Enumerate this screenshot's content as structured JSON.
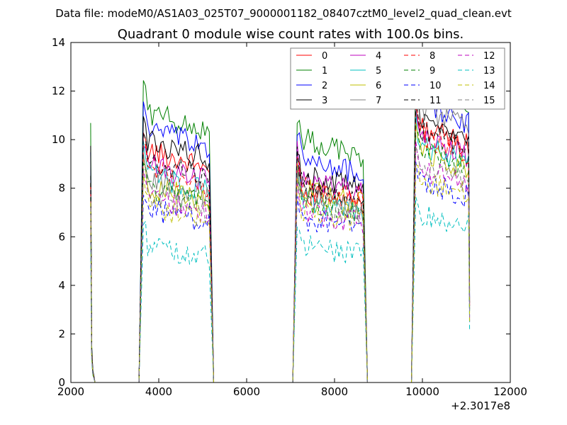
{
  "chart_data": {
    "type": "line",
    "suptitle": "Data file: modeM0/AS1A03_025T07_9000001182_08407cztM0_level2_quad_clean.evt",
    "title": "Quadrant 0 module wise count rates with 100.0s bins.",
    "xlabel": "",
    "ylabel": "",
    "x_offset_label": "+2.3017e8",
    "xlim": [
      2000,
      12000
    ],
    "ylim": [
      0,
      14
    ],
    "xticks": [
      2000,
      4000,
      6000,
      8000,
      10000,
      12000
    ],
    "yticks": [
      0,
      2,
      4,
      6,
      8,
      10,
      12,
      14
    ],
    "grid": false,
    "legend_position": "top-right",
    "legend_columns": 4,
    "segments": [
      {
        "start": 2450,
        "end": 2550
      },
      {
        "start": 3650,
        "end": 5150
      },
      {
        "start": 7150,
        "end": 8650
      },
      {
        "start": 9850,
        "end": 11050
      }
    ],
    "series": [
      {
        "name": "0",
        "color": "#ff0000",
        "dash": "solid",
        "seg_levels": [
          8.6,
          9.6,
          7.9,
          10.6
        ]
      },
      {
        "name": "1",
        "color": "#008000",
        "dash": "solid",
        "seg_levels": [
          10.4,
          11.2,
          10.1,
          12.6
        ]
      },
      {
        "name": "2",
        "color": "#0000ff",
        "dash": "solid",
        "seg_levels": [
          9.4,
          10.5,
          9.3,
          11.6
        ]
      },
      {
        "name": "3",
        "color": "#000000",
        "dash": "solid",
        "seg_levels": [
          9.8,
          10.0,
          8.6,
          10.9
        ]
      },
      {
        "name": "4",
        "color": "#bf00bf",
        "dash": "solid",
        "seg_levels": [
          8.2,
          9.0,
          8.5,
          10.1
        ]
      },
      {
        "name": "5",
        "color": "#00bfbf",
        "dash": "solid",
        "seg_levels": [
          7.8,
          8.6,
          7.6,
          9.8
        ]
      },
      {
        "name": "6",
        "color": "#bfbf00",
        "dash": "solid",
        "seg_levels": [
          7.9,
          8.1,
          8.0,
          9.5
        ]
      },
      {
        "name": "7",
        "color": "#808080",
        "dash": "solid",
        "seg_levels": [
          8.0,
          8.4,
          7.8,
          11.4
        ]
      },
      {
        "name": "8",
        "color": "#ff0000",
        "dash": "dashed",
        "seg_levels": [
          8.1,
          8.8,
          8.2,
          10.2
        ]
      },
      {
        "name": "9",
        "color": "#008000",
        "dash": "dashed",
        "seg_levels": [
          7.6,
          8.0,
          7.4,
          9.6
        ]
      },
      {
        "name": "10",
        "color": "#0000ff",
        "dash": "dashed",
        "seg_levels": [
          6.6,
          7.2,
          6.8,
          8.3
        ]
      },
      {
        "name": "11",
        "color": "#000000",
        "dash": "dashed",
        "seg_levels": [
          8.4,
          9.2,
          8.3,
          10.5
        ]
      },
      {
        "name": "12",
        "color": "#bf00bf",
        "dash": "dashed",
        "seg_levels": [
          7.3,
          7.6,
          7.1,
          8.8
        ]
      },
      {
        "name": "13",
        "color": "#00bfbf",
        "dash": "dashed",
        "seg_levels": [
          5.8,
          5.6,
          5.7,
          7.0
        ]
      },
      {
        "name": "14",
        "color": "#bfbf00",
        "dash": "dashed",
        "seg_levels": [
          7.0,
          7.3,
          7.2,
          8.4
        ]
      },
      {
        "name": "15",
        "color": "#808080",
        "dash": "dashed",
        "seg_levels": [
          7.4,
          7.8,
          7.5,
          9.0
        ]
      }
    ]
  }
}
